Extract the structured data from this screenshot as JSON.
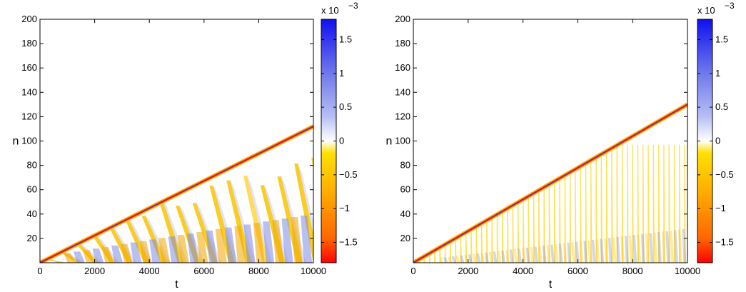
{
  "chart_data": [
    {
      "type": "heatmap",
      "title": "",
      "xlabel": "t",
      "ylabel": "n",
      "xlim": [
        0,
        10000
      ],
      "ylim": [
        0,
        200
      ],
      "xticks": [
        "0",
        "2000",
        "4000",
        "6000",
        "8000",
        "10000"
      ],
      "yticks": [
        "20",
        "40",
        "60",
        "80",
        "100",
        "120",
        "140",
        "160",
        "180",
        "200"
      ],
      "front_line": {
        "x": [
          0,
          10000
        ],
        "y": [
          0,
          112
        ]
      },
      "features": {
        "stripe_period_t": 620,
        "stripe_top_n": [
          22,
          78
        ],
        "lower_band": {
          "x": [
            1000,
            10000
          ],
          "y": [
            8,
            40
          ]
        },
        "texture": "patchy"
      },
      "colorbar": {
        "range": [
          -0.0018,
          0.0018
        ],
        "scale_label": "x 10",
        "scale_exponent": "−3",
        "ticks": [
          "1.5",
          "1",
          "0.5",
          "0",
          "−0.5",
          "−1",
          "−1.5"
        ],
        "colors": [
          "#ff0000",
          "#ff6600",
          "#ffb000",
          "#ffe000",
          "#ffffff",
          "#b8bef4",
          "#6e78ec",
          "#1010f0"
        ]
      }
    },
    {
      "type": "heatmap",
      "title": "",
      "xlabel": "t",
      "ylabel": "n",
      "xlim": [
        0,
        10000
      ],
      "ylim": [
        0,
        200
      ],
      "xticks": [
        "0",
        "2000",
        "4000",
        "6000",
        "8000",
        "10000"
      ],
      "yticks": [
        "20",
        "40",
        "60",
        "80",
        "100",
        "120",
        "140",
        "160",
        "180",
        "200"
      ],
      "front_line": {
        "x": [
          0,
          10000
        ],
        "y": [
          0,
          130
        ]
      },
      "features": {
        "stripe_period_t": 190,
        "stripe_top_n": [
          97,
          97
        ],
        "lower_band": {
          "x": [
            1000,
            10000
          ],
          "y": [
            4,
            28
          ]
        },
        "texture": "fine"
      },
      "colorbar": {
        "range": [
          -0.0018,
          0.0018
        ],
        "scale_label": "x 10",
        "scale_exponent": "−3",
        "ticks": [
          "1.5",
          "1",
          "0.5",
          "0",
          "−0.5",
          "−1",
          "−1.5"
        ],
        "colors": [
          "#ff0000",
          "#ff6600",
          "#ffb000",
          "#ffe000",
          "#ffffff",
          "#b8bef4",
          "#6e78ec",
          "#1010f0"
        ]
      }
    }
  ]
}
